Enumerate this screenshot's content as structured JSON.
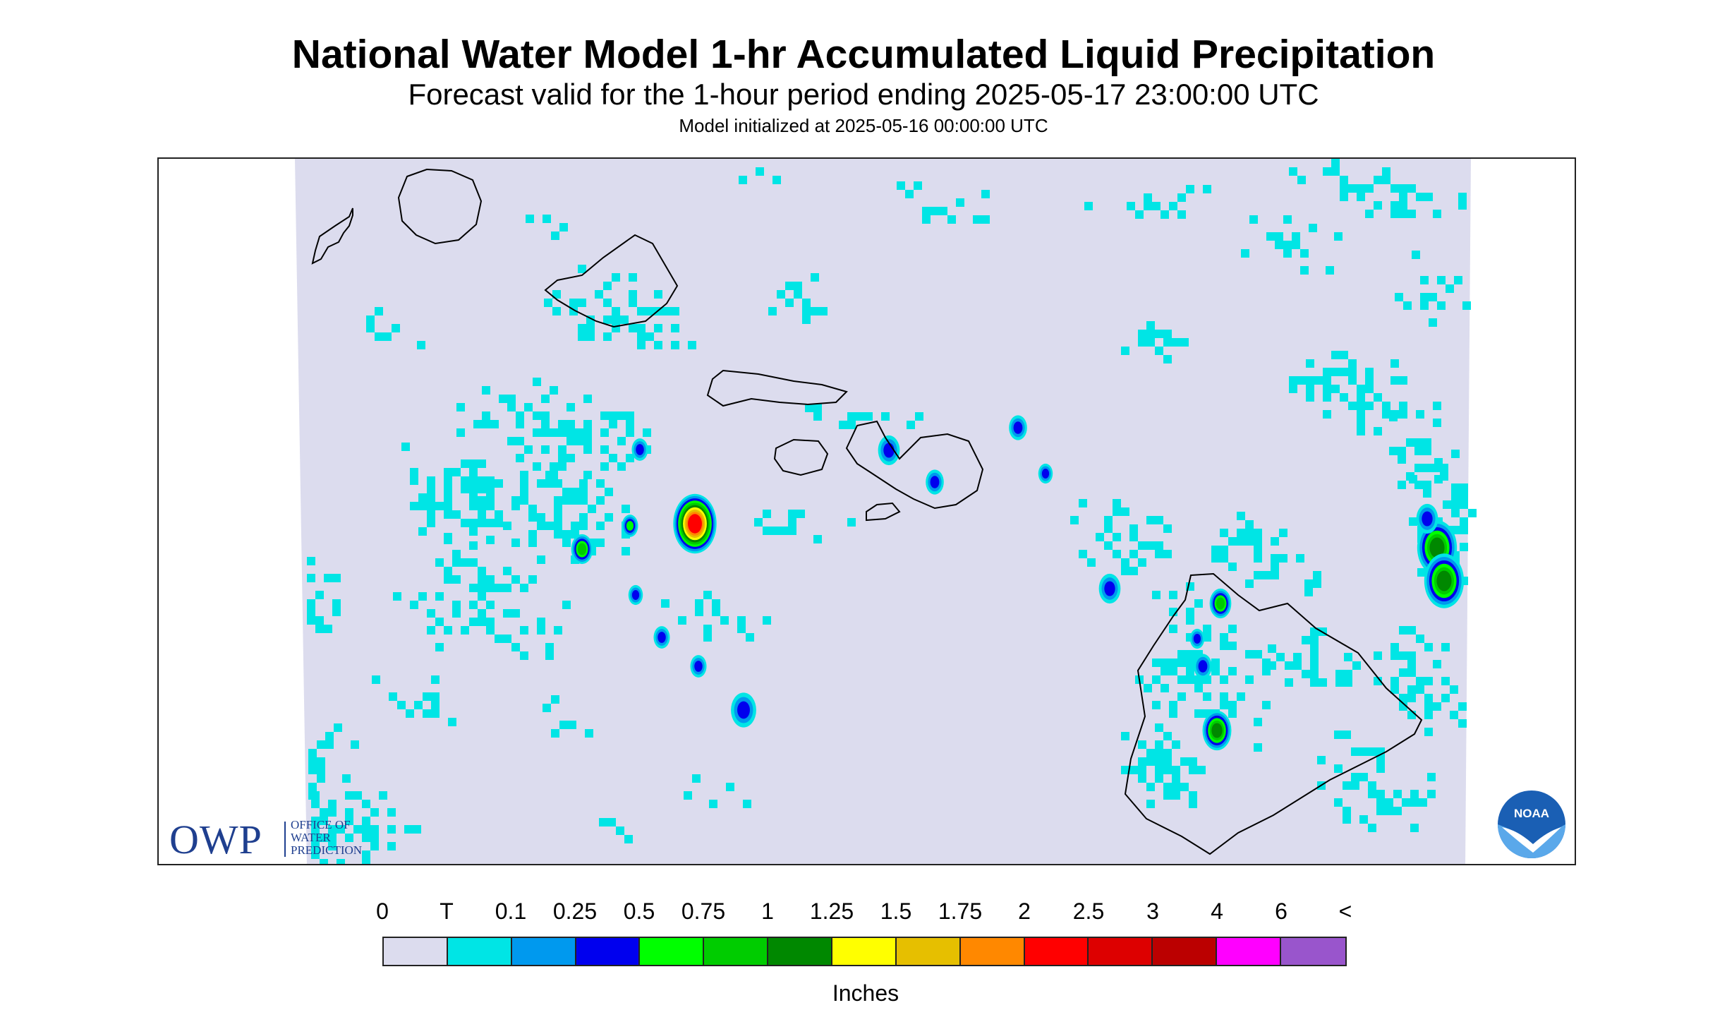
{
  "title": "National Water Model 1-hr Accumulated Liquid Precipitation",
  "subtitle": "Forecast valid for the 1-hour period ending 2025-05-17 23:00:00 UTC",
  "init_line": "Model initialized at 2025-05-16 00:00:00 UTC",
  "logos": {
    "owp_abbrev": "OWP",
    "owp_name": [
      "OFFICE OF",
      "WATER",
      "PREDICTION"
    ],
    "noaa": "NOAA"
  },
  "colors": {
    "no_data": "#ffffff",
    "background": "#dcdcee",
    "coastline": "#000000"
  },
  "legend": {
    "units": "Inches",
    "labels": [
      "0",
      "T",
      "0.1",
      "0.25",
      "0.5",
      "0.75",
      "1",
      "1.25",
      "1.5",
      "1.75",
      "2",
      "2.5",
      "3",
      "4",
      "6",
      "<"
    ],
    "colors": [
      "#dcdcee",
      "#00e5e5",
      "#0099ee",
      "#0000ee",
      "#00ff00",
      "#00cc00",
      "#008800",
      "#ffff00",
      "#e6bf00",
      "#ff8800",
      "#ff0000",
      "#dd0000",
      "#bb0000",
      "#ff00ff",
      "#9955cc"
    ]
  }
}
